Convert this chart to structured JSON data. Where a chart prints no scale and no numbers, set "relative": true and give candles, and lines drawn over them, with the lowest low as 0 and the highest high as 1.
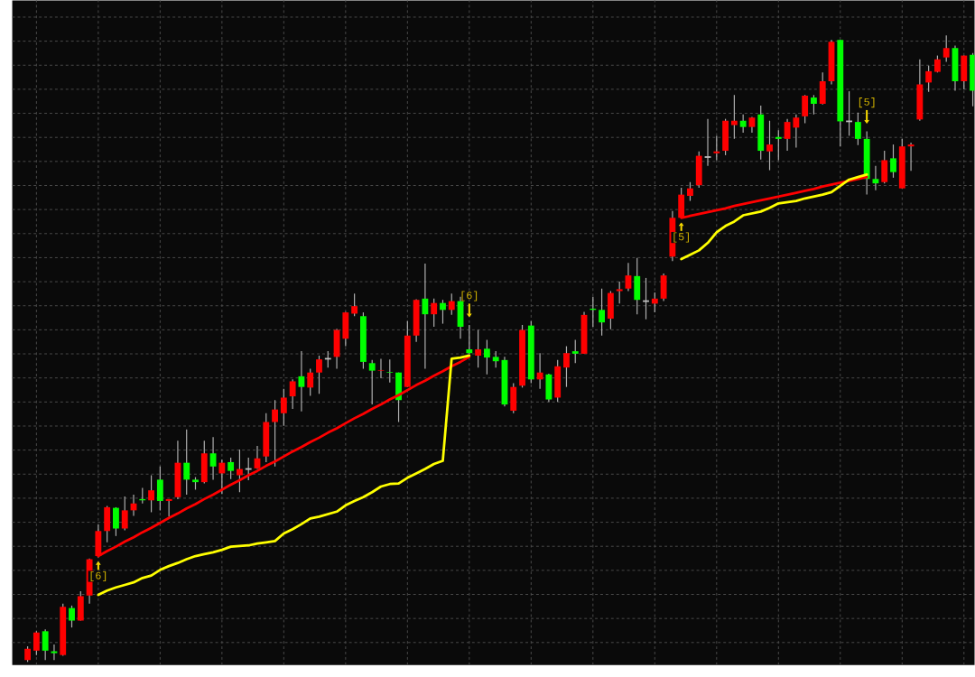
{
  "chart_data": {
    "type": "candlestick",
    "relative": true,
    "grid": true,
    "categories": [
      null,
      null,
      null,
      null,
      null,
      null,
      null,
      null,
      null,
      null,
      null,
      null,
      null,
      null,
      null,
      null,
      null,
      null,
      null,
      null,
      null,
      null,
      null,
      null,
      null,
      null,
      null,
      null,
      null,
      null,
      null,
      null,
      null,
      null,
      null,
      null,
      null,
      null,
      null,
      null,
      null,
      null,
      null,
      null,
      null,
      null,
      null,
      null,
      null,
      null,
      null,
      null,
      null,
      null,
      null,
      null,
      null,
      null,
      null,
      null,
      null,
      null,
      null,
      null,
      null,
      null,
      null,
      null,
      null,
      null,
      null,
      null,
      null,
      null,
      null,
      null,
      null,
      null,
      null,
      null,
      null,
      null,
      null,
      null,
      null,
      null,
      null,
      null,
      null,
      null,
      null,
      null,
      null,
      null,
      null,
      null,
      null,
      null,
      null,
      null,
      null,
      null,
      null,
      null,
      null,
      null,
      null,
      null
    ],
    "ohlc": [
      [
        0.003,
        0.025,
        0,
        0.021
      ],
      [
        0.018,
        0.049,
        0.011,
        0.047
      ],
      [
        0.049,
        0.052,
        0.003,
        0.018
      ],
      [
        0.017,
        0.028,
        0.003,
        0.014
      ],
      [
        0.011,
        0.093,
        0.01,
        0.088
      ],
      [
        0.086,
        0.09,
        0.055,
        0.066
      ],
      [
        0.066,
        0.113,
        0.066,
        0.105
      ],
      [
        0.106,
        0.165,
        0.093,
        0.164
      ],
      [
        0.169,
        0.219,
        0.167,
        0.209
      ],
      [
        0.209,
        0.249,
        0.191,
        0.247
      ],
      [
        0.246,
        0.247,
        0.201,
        0.213
      ],
      [
        0.213,
        0.264,
        0.21,
        0.242
      ],
      [
        0.242,
        0.267,
        0.233,
        0.253
      ],
      [
        0.26,
        0.278,
        0.253,
        0.258
      ],
      [
        0.258,
        0.298,
        0.239,
        0.274
      ],
      [
        0.291,
        0.312,
        0.242,
        0.257
      ],
      [
        0.257,
        0.26,
        0.232,
        0.26
      ],
      [
        0.263,
        0.353,
        0.26,
        0.318
      ],
      [
        0.318,
        0.371,
        0.267,
        0.291
      ],
      [
        0.291,
        0.295,
        0.275,
        0.287
      ],
      [
        0.287,
        0.353,
        0.285,
        0.333
      ],
      [
        0.333,
        0.359,
        0.291,
        0.312
      ],
      [
        0.301,
        0.323,
        0.268,
        0.318
      ],
      [
        0.319,
        0.326,
        0.292,
        0.305
      ],
      [
        0.298,
        0.339,
        0.271,
        0.308
      ],
      [
        0.308,
        0.326,
        0.29,
        0.308
      ],
      [
        0.309,
        0.345,
        0.308,
        0.325
      ],
      [
        0.328,
        0.397,
        0.319,
        0.383
      ],
      [
        0.383,
        0.418,
        0.312,
        0.403
      ],
      [
        0.397,
        0.436,
        0.377,
        0.422
      ],
      [
        0.424,
        0.451,
        0.404,
        0.448
      ],
      [
        0.456,
        0.496,
        0.4,
        0.439
      ],
      [
        0.438,
        0.468,
        0.425,
        0.462
      ],
      [
        0.462,
        0.489,
        0.428,
        0.483
      ],
      [
        0.484,
        0.496,
        0.47,
        0.484
      ],
      [
        0.487,
        0.532,
        0.468,
        0.53
      ],
      [
        0.516,
        0.559,
        0.504,
        0.558
      ],
      [
        0.556,
        0.588,
        0.552,
        0.568
      ],
      [
        0.552,
        0.558,
        0.468,
        0.479
      ],
      [
        0.477,
        0.482,
        0.411,
        0.465
      ],
      [
        0.465,
        0.484,
        0.453,
        0.466
      ],
      [
        0.463,
        0.483,
        0.446,
        0.462
      ],
      [
        0.462,
        0.462,
        0.383,
        0.418
      ],
      [
        0.439,
        0.544,
        0.439,
        0.521
      ],
      [
        0.521,
        0.579,
        0.511,
        0.578
      ],
      [
        0.58,
        0.636,
        0.468,
        0.555
      ],
      [
        0.555,
        0.58,
        0.535,
        0.573
      ],
      [
        0.573,
        0.578,
        0.54,
        0.562
      ],
      [
        0.562,
        0.588,
        0.554,
        0.576
      ],
      [
        0.576,
        0.583,
        0.516,
        0.535
      ],
      [
        0.499,
        0.538,
        0.492,
        0.493
      ],
      [
        0.489,
        0.53,
        0.47,
        0.499
      ],
      [
        0.5,
        0.514,
        0.459,
        0.486
      ],
      [
        0.487,
        0.496,
        0.47,
        0.48
      ],
      [
        0.482,
        0.487,
        0.408,
        0.411
      ],
      [
        0.401,
        0.445,
        0.397,
        0.439
      ],
      [
        0.441,
        0.538,
        0.438,
        0.53
      ],
      [
        0.537,
        0.544,
        0.445,
        0.451
      ],
      [
        0.451,
        0.493,
        0.436,
        0.462
      ],
      [
        0.459,
        0.46,
        0.415,
        0.419
      ],
      [
        0.422,
        0.482,
        0.415,
        0.472
      ],
      [
        0.47,
        0.504,
        0.439,
        0.493
      ],
      [
        0.496,
        0.514,
        0.477,
        0.492
      ],
      [
        0.492,
        0.559,
        0.492,
        0.554
      ],
      [
        0.564,
        0.583,
        0.535,
        0.562
      ],
      [
        0.562,
        0.596,
        0.521,
        0.542
      ],
      [
        0.548,
        0.592,
        0.531,
        0.589
      ],
      [
        0.592,
        0.607,
        0.572,
        0.595
      ],
      [
        0.596,
        0.637,
        0.592,
        0.617
      ],
      [
        0.616,
        0.645,
        0.555,
        0.578
      ],
      [
        0.576,
        0.613,
        0.547,
        0.576
      ],
      [
        0.572,
        0.59,
        0.558,
        0.58
      ],
      [
        0.58,
        0.62,
        0.576,
        0.617
      ],
      [
        0.647,
        0.72,
        0.64,
        0.709
      ],
      [
        0.709,
        0.757,
        0.708,
        0.746
      ],
      [
        0.744,
        0.766,
        0.736,
        0.756
      ],
      [
        0.761,
        0.815,
        0.757,
        0.808
      ],
      [
        0.806,
        0.867,
        0.792,
        0.806
      ],
      [
        0.812,
        0.84,
        0.801,
        0.815
      ],
      [
        0.816,
        0.867,
        0.809,
        0.864
      ],
      [
        0.857,
        0.905,
        0.835,
        0.864
      ],
      [
        0.864,
        0.874,
        0.845,
        0.854
      ],
      [
        0.854,
        0.87,
        0.845,
        0.869
      ],
      [
        0.874,
        0.888,
        0.802,
        0.816
      ],
      [
        0.815,
        0.864,
        0.785,
        0.826
      ],
      [
        0.838,
        0.849,
        0.801,
        0.835
      ],
      [
        0.835,
        0.867,
        0.816,
        0.862
      ],
      [
        0.853,
        0.874,
        0.821,
        0.869
      ],
      [
        0.871,
        0.905,
        0.86,
        0.904
      ],
      [
        0.901,
        0.905,
        0.874,
        0.891
      ],
      [
        0.891,
        0.941,
        0.89,
        0.927
      ],
      [
        0.927,
        0.993,
        0.922,
        0.99
      ],
      [
        0.993,
        0.993,
        0.823,
        0.863
      ],
      [
        0.863,
        0.911,
        0.84,
        0.863
      ],
      [
        0.862,
        0.877,
        0.825,
        0.835
      ],
      [
        0.835,
        0.847,
        0.746,
        0.771
      ],
      [
        0.771,
        0.792,
        0.753,
        0.764
      ],
      [
        0.766,
        0.816,
        0.764,
        0.801
      ],
      [
        0.804,
        0.826,
        0.773,
        0.782
      ],
      [
        0.756,
        0.835,
        0.756,
        0.823
      ],
      [
        0.823,
        0.829,
        0.784,
        0.826
      ],
      [
        0.866,
        0.962,
        0.864,
        0.922
      ],
      [
        0.925,
        0.952,
        0.91,
        0.943
      ],
      [
        0.942,
        0.968,
        0.941,
        0.962
      ],
      [
        0.965,
        1,
        0.958,
        0.98
      ],
      [
        0.98,
        0.984,
        0.912,
        0.927
      ],
      [
        0.927,
        0.968,
        0.914,
        0.968
      ],
      [
        0.969,
        0.972,
        0.887,
        0.912
      ]
    ],
    "colors": [
      "#ff0000",
      "#ff0000",
      "#00ff00",
      "#00ff00",
      "#ff0000",
      "#00ff00",
      "#ff0000",
      "#ff0000",
      "#ff0000",
      "#ff0000",
      "#00ff00",
      "#ff0000",
      "#ff0000",
      "#00ff00",
      "#ff0000",
      "#00ff00",
      "#ff0000",
      "#ff0000",
      "#00ff00",
      "#00ff00",
      "#ff0000",
      "#00ff00",
      "#ff0000",
      "#00ff00",
      "#ff0000",
      "#c0c0c0",
      "#ff0000",
      "#ff0000",
      "#ff0000",
      "#ff0000",
      "#ff0000",
      "#00ff00",
      "#ff0000",
      "#ff0000",
      "#c0c0c0",
      "#ff0000",
      "#ff0000",
      "#ff0000",
      "#00ff00",
      "#00ff00",
      "#ff0000",
      "#00ff00",
      "#00ff00",
      "#ff0000",
      "#ff0000",
      "#00ff00",
      "#ff0000",
      "#00ff00",
      "#ff0000",
      "#00ff00",
      "#00ff00",
      "#ff0000",
      "#00ff00",
      "#00ff00",
      "#00ff00",
      "#ff0000",
      "#ff0000",
      "#00ff00",
      "#ff0000",
      "#00ff00",
      "#ff0000",
      "#ff0000",
      "#00ff00",
      "#ff0000",
      "#00ff00",
      "#00ff00",
      "#ff0000",
      "#ff0000",
      "#ff0000",
      "#00ff00",
      "#c0c0c0",
      "#ff0000",
      "#ff0000",
      "#ff0000",
      "#ff0000",
      "#ff0000",
      "#ff0000",
      "#c0c0c0",
      "#ff0000",
      "#ff0000",
      "#ff0000",
      "#00ff00",
      "#ff0000",
      "#00ff00",
      "#ff0000",
      "#00ff00",
      "#ff0000",
      "#ff0000",
      "#ff0000",
      "#00ff00",
      "#ff0000",
      "#ff0000",
      "#00ff00",
      "#c0c0c0",
      "#00ff00",
      "#00ff00",
      "#00ff00",
      "#ff0000",
      "#00ff00",
      "#ff0000",
      "#ff0000",
      "#ff0000",
      "#ff0000",
      "#ff0000",
      "#ff0000",
      "#00ff00",
      "#ff0000",
      "#00ff00"
    ],
    "series": [
      {
        "type": "line",
        "color": "#ff0000",
        "values": [
          null,
          null,
          null,
          null,
          null,
          null,
          null,
          null,
          0.169,
          0.177,
          0.184,
          0.192,
          0.199,
          0.207,
          0.214,
          0.222,
          0.23,
          0.237,
          0.245,
          0.252,
          0.26,
          0.267,
          0.275,
          0.283,
          0.29,
          0.298,
          0.305,
          0.313,
          0.32,
          0.328,
          0.336,
          0.343,
          0.351,
          0.358,
          0.366,
          0.373,
          0.381,
          0.389,
          0.396,
          0.404,
          0.411,
          0.419,
          0.426,
          0.434,
          0.442,
          0.449,
          0.457,
          0.464,
          0.472,
          0.479,
          0.487,
          null,
          null,
          null,
          null,
          null,
          null,
          null,
          null,
          null,
          null,
          null,
          null,
          null,
          null,
          null,
          null,
          null,
          null,
          null,
          null,
          null,
          null,
          null,
          null,
          null,
          null,
          null,
          null,
          null,
          null,
          null,
          null,
          null,
          null,
          null,
          null,
          null,
          null,
          null,
          null,
          null,
          null,
          null,
          null,
          null,
          null,
          null,
          null,
          null,
          null,
          null,
          null,
          null,
          null,
          null,
          null,
          null
        ]
      },
      {
        "type": "line",
        "color": "#ff0000",
        "values": [
          null,
          null,
          null,
          null,
          null,
          null,
          null,
          null,
          null,
          null,
          null,
          null,
          null,
          null,
          null,
          null,
          null,
          null,
          null,
          null,
          null,
          null,
          null,
          null,
          null,
          null,
          null,
          null,
          null,
          null,
          null,
          null,
          null,
          null,
          null,
          null,
          null,
          null,
          null,
          null,
          null,
          null,
          null,
          null,
          null,
          null,
          null,
          null,
          null,
          null,
          null,
          null,
          null,
          null,
          null,
          null,
          null,
          null,
          null,
          null,
          null,
          null,
          null,
          null,
          null,
          null,
          null,
          null,
          null,
          null,
          null,
          null,
          null,
          null,
          0.709,
          0.712,
          0.715,
          0.718,
          0.721,
          0.724,
          0.728,
          0.731,
          0.734,
          0.737,
          0.74,
          0.743,
          0.746,
          0.749,
          0.752,
          0.755,
          0.759,
          0.762,
          0.765,
          0.768,
          0.771,
          0.774,
          null,
          null,
          null,
          null,
          null,
          null,
          null,
          null,
          null,
          null,
          null,
          null
        ]
      },
      {
        "type": "line",
        "color": "#ffff00",
        "values": [
          null,
          null,
          null,
          null,
          null,
          null,
          null,
          null,
          0.107,
          0.114,
          0.119,
          0.123,
          0.127,
          0.134,
          0.138,
          0.147,
          0.153,
          0.158,
          0.164,
          0.169,
          0.172,
          0.175,
          0.179,
          0.184,
          0.185,
          0.186,
          0.189,
          0.191,
          0.193,
          0.205,
          0.212,
          0.22,
          0.229,
          0.232,
          0.236,
          0.24,
          0.25,
          0.257,
          0.263,
          0.271,
          0.28,
          0.284,
          0.285,
          0.294,
          0.301,
          0.308,
          0.316,
          0.321,
          0.484,
          0.486,
          0.489,
          null,
          null,
          null,
          null,
          null,
          null,
          null,
          null,
          null,
          null,
          null,
          null,
          null,
          null,
          null,
          null,
          null,
          null,
          null,
          null,
          null,
          null,
          null,
          null,
          null,
          null,
          null,
          null,
          null,
          null,
          null,
          null,
          null,
          null,
          null,
          null,
          null,
          null,
          null,
          null,
          null,
          null,
          null,
          null,
          null,
          null,
          null,
          null,
          null,
          null,
          null,
          null,
          null,
          null,
          null,
          null,
          null
        ]
      },
      {
        "type": "line",
        "color": "#ffff00",
        "values": [
          null,
          null,
          null,
          null,
          null,
          null,
          null,
          null,
          null,
          null,
          null,
          null,
          null,
          null,
          null,
          null,
          null,
          null,
          null,
          null,
          null,
          null,
          null,
          null,
          null,
          null,
          null,
          null,
          null,
          null,
          null,
          null,
          null,
          null,
          null,
          null,
          null,
          null,
          null,
          null,
          null,
          null,
          null,
          null,
          null,
          null,
          null,
          null,
          null,
          null,
          null,
          null,
          null,
          null,
          null,
          null,
          null,
          null,
          null,
          null,
          null,
          null,
          null,
          null,
          null,
          null,
          null,
          null,
          null,
          null,
          null,
          null,
          null,
          null,
          0.643,
          0.65,
          0.657,
          0.669,
          0.686,
          0.696,
          0.703,
          0.713,
          0.716,
          0.719,
          0.725,
          0.732,
          0.734,
          0.736,
          0.74,
          0.743,
          0.746,
          0.75,
          0.76,
          0.77,
          0.774,
          0.778,
          null,
          null,
          null,
          null,
          null,
          null,
          null,
          null,
          null,
          null,
          null,
          null
        ]
      }
    ],
    "annotations": [
      "[6]",
      "[6]",
      "[5]",
      "[5]"
    ]
  }
}
